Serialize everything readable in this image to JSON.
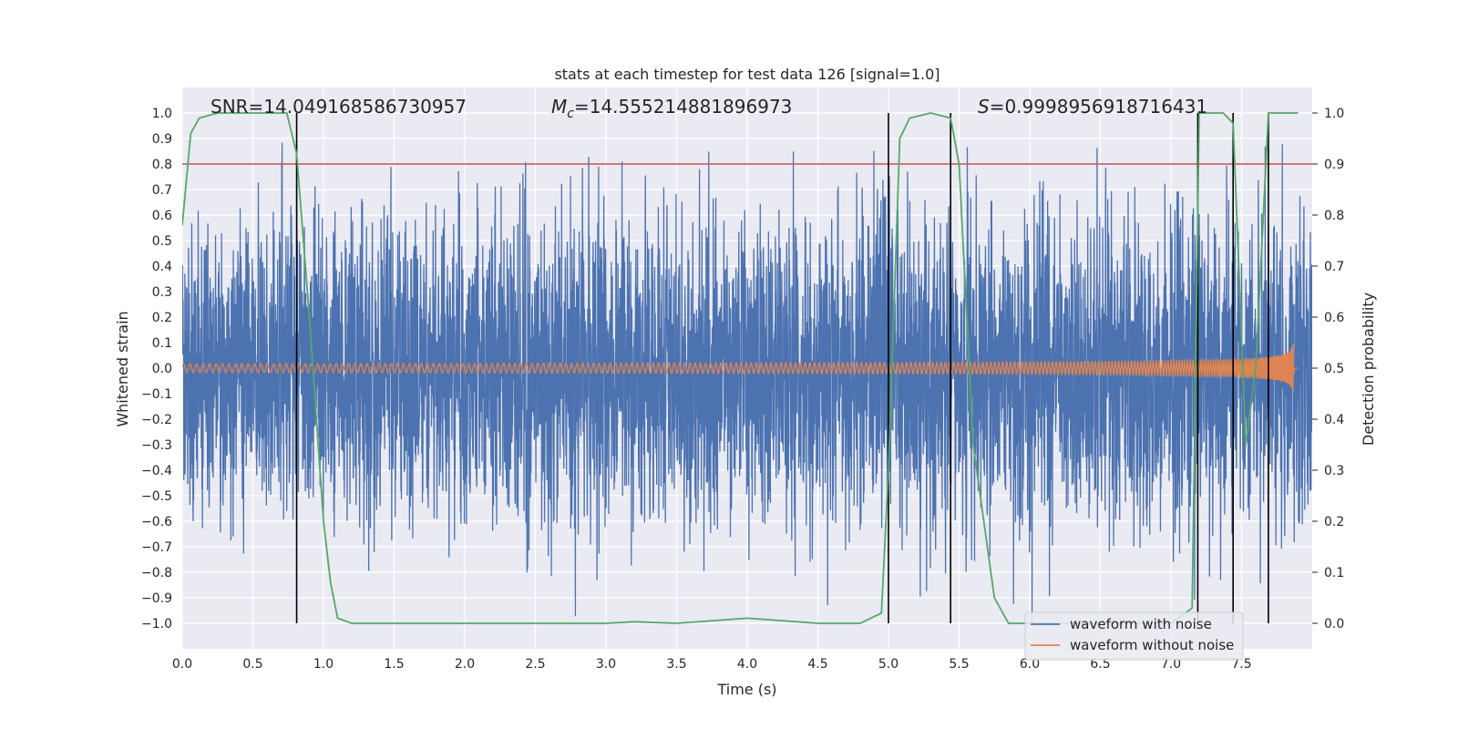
{
  "chart_data": {
    "type": "line",
    "title": "stats at each timestep for test data 126 [signal=1.0]",
    "xlabel": "Time (s)",
    "ylabel": "Whitened strain",
    "y2label": "Detection probability",
    "xlim": [
      0.0,
      8.0
    ],
    "ylim": [
      -1.1,
      1.1
    ],
    "y2lim": [
      -0.05,
      1.05
    ],
    "xticks": [
      "0.0",
      "0.5",
      "1.0",
      "1.5",
      "2.0",
      "2.5",
      "3.0",
      "3.5",
      "4.0",
      "4.5",
      "5.0",
      "5.5",
      "6.0",
      "6.5",
      "7.0",
      "7.5"
    ],
    "yticks": [
      "1.0",
      "0.9",
      "0.8",
      "0.7",
      "0.6",
      "0.5",
      "0.4",
      "0.3",
      "0.2",
      "0.1",
      "0.0",
      "−0.1",
      "−0.2",
      "−0.3",
      "−0.4",
      "−0.5",
      "−0.6",
      "−0.7",
      "−0.8",
      "−0.9",
      "−1.0"
    ],
    "y2ticks": [
      "1.0",
      "0.9",
      "0.8",
      "0.7",
      "0.6",
      "0.5",
      "0.4",
      "0.3",
      "0.2",
      "0.1",
      "0.0"
    ],
    "grid": true,
    "legend_position": "lower right",
    "annotations": {
      "snr": "SNR=14.049168586730957",
      "mc_symbol": "M",
      "mc_sub": "c",
      "mc_value": "=14.555214881896973",
      "s_symbol": "S",
      "s_value": "=0.9998956918716431"
    },
    "threshold_line": {
      "y2": 0.9,
      "color": "#c44e52"
    },
    "vertical_markers_x": [
      0.81,
      5.0,
      5.44,
      7.19,
      7.44,
      7.69
    ],
    "series": [
      {
        "name": "waveform with noise",
        "color": "#4c72b0",
        "description_range": [
          -1.0,
          0.9
        ],
        "duration": 8.0
      },
      {
        "name": "waveform without noise",
        "color": "#dd8452",
        "duration": 7.9
      },
      {
        "name": "",
        "color": "#55a868",
        "axis": "y2",
        "x": [
          0.0,
          0.06,
          0.12,
          0.25,
          0.5,
          0.74,
          0.81,
          0.9,
          1.0,
          1.05,
          1.1,
          1.2,
          2.0,
          3.0,
          3.2,
          3.5,
          4.0,
          4.5,
          4.8,
          4.95,
          5.0,
          5.08,
          5.15,
          5.3,
          5.44,
          5.5,
          5.6,
          5.75,
          5.85,
          6.0,
          7.0,
          7.15,
          7.2,
          7.3,
          7.37,
          7.44,
          7.53,
          7.6,
          7.69,
          7.75,
          7.9
        ],
        "y": [
          0.78,
          0.96,
          0.99,
          1.0,
          1.0,
          1.0,
          0.92,
          0.6,
          0.2,
          0.08,
          0.01,
          0.0,
          0.0,
          0.0,
          0.003,
          0.0,
          0.01,
          0.0,
          0.0,
          0.02,
          0.3,
          0.95,
          0.99,
          1.0,
          0.99,
          0.9,
          0.35,
          0.05,
          0.0,
          0.0,
          0.0,
          0.03,
          1.0,
          1.0,
          1.0,
          0.98,
          0.35,
          0.5,
          1.0,
          1.0,
          1.0
        ]
      }
    ]
  }
}
